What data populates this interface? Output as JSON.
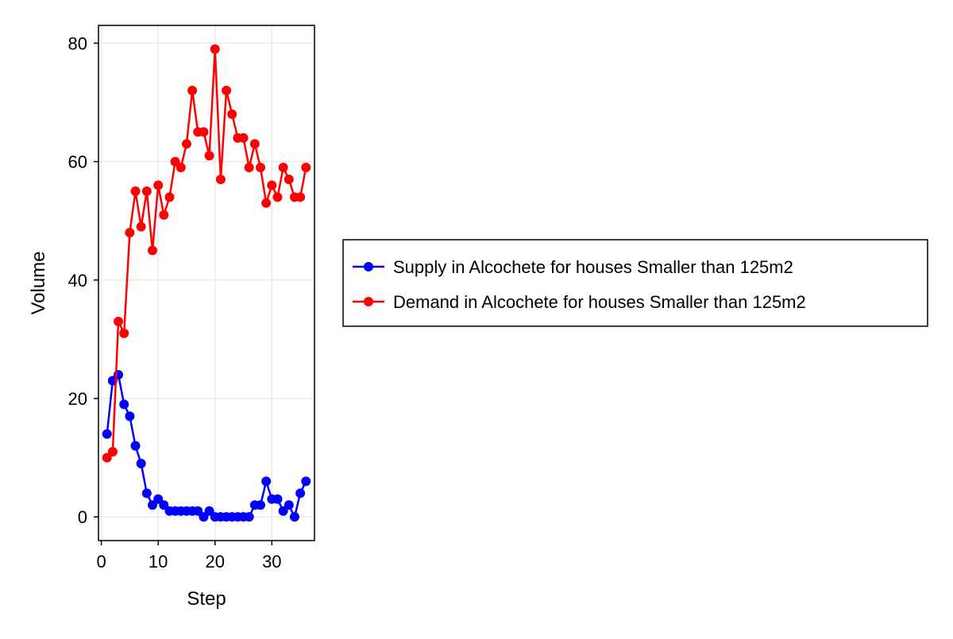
{
  "chart_data": {
    "type": "line",
    "title": "",
    "xlabel": "Step",
    "ylabel": "Volume",
    "xlim": [
      -0.5,
      37.5
    ],
    "ylim": [
      -4,
      83
    ],
    "xticks": [
      0,
      10,
      20,
      30
    ],
    "yticks": [
      0,
      20,
      40,
      60,
      80
    ],
    "grid": true,
    "legend_position": "right",
    "x": [
      1,
      2,
      3,
      4,
      5,
      6,
      7,
      8,
      9,
      10,
      11,
      12,
      13,
      14,
      15,
      16,
      17,
      18,
      19,
      20,
      21,
      22,
      23,
      24,
      25,
      26,
      27,
      28,
      29,
      30,
      31,
      32,
      33,
      34,
      35,
      36
    ],
    "series": [
      {
        "name": "Supply in Alcochete for houses Smaller than 125m2",
        "color": "#0000ff",
        "values": [
          14,
          23,
          24,
          19,
          17,
          12,
          9,
          4,
          2,
          3,
          2,
          1,
          1,
          1,
          1,
          1,
          1,
          0,
          1,
          0,
          0,
          0,
          0,
          0,
          0,
          0,
          2,
          2,
          6,
          3,
          3,
          1,
          2,
          0,
          4,
          6
        ]
      },
      {
        "name": "Demand in Alcochete for houses Smaller than 125m2",
        "color": "#ff0000",
        "values": [
          10,
          11,
          33,
          31,
          48,
          55,
          49,
          55,
          45,
          56,
          51,
          54,
          60,
          59,
          63,
          72,
          65,
          65,
          61,
          79,
          57,
          72,
          68,
          64,
          64,
          59,
          63,
          59,
          53,
          56,
          54,
          59,
          57,
          54,
          54,
          59
        ]
      }
    ]
  }
}
